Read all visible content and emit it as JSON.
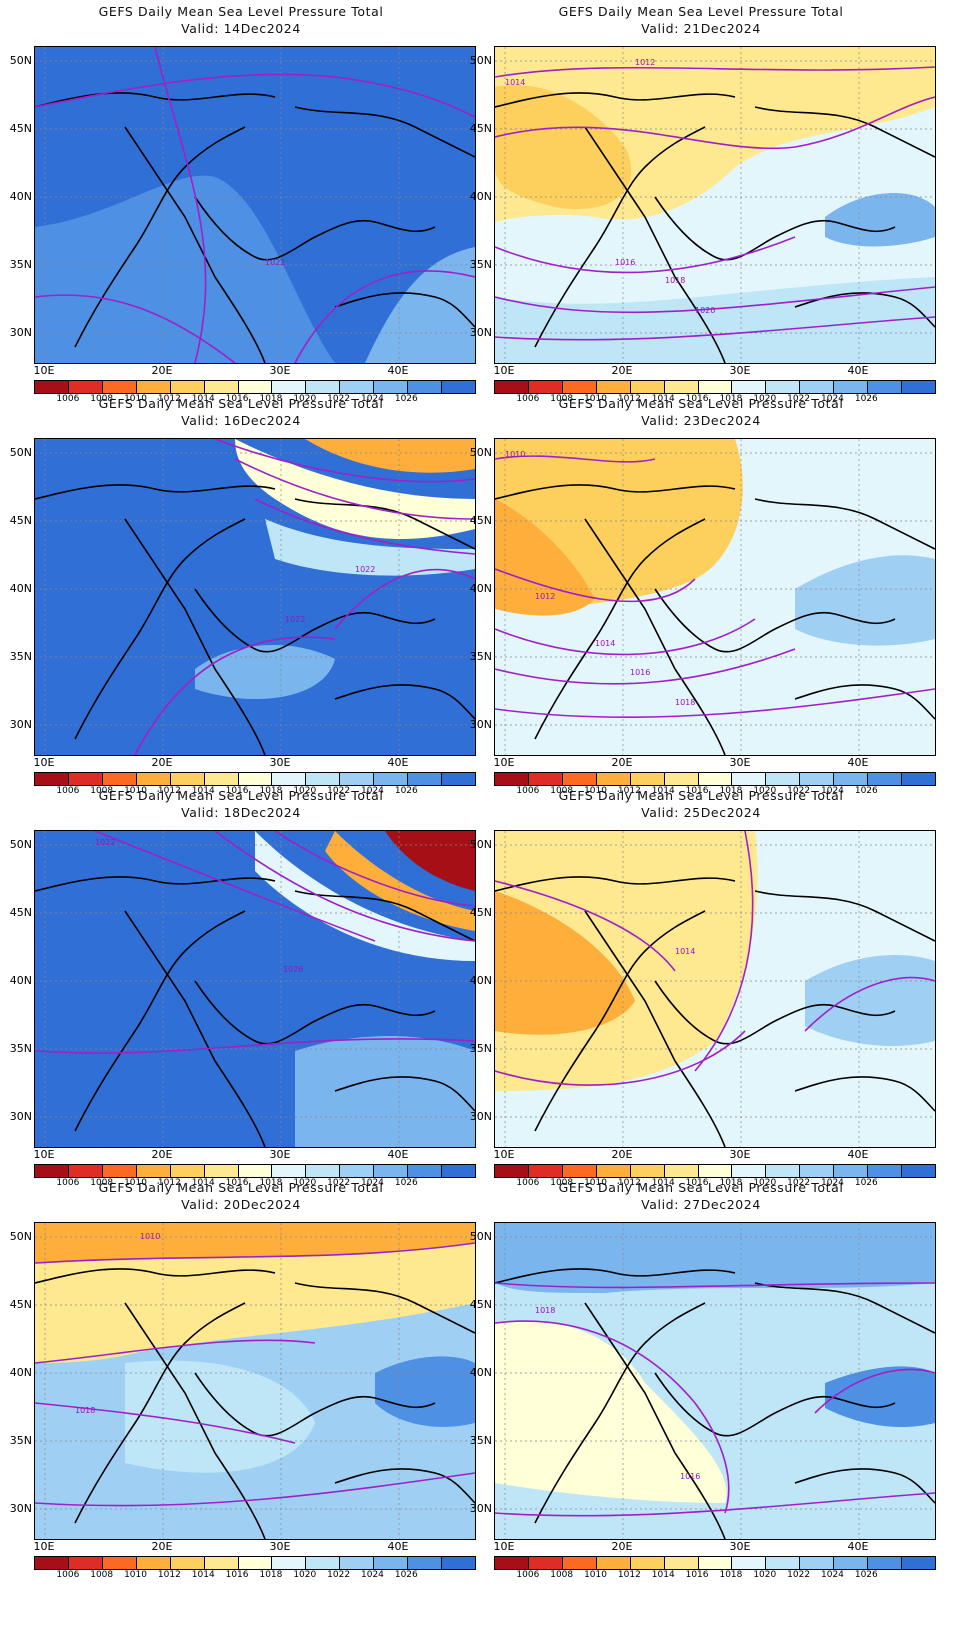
{
  "title_line": "GEFS Daily Mean Sea Level Pressure Total",
  "valid_prefix": "Valid:",
  "lat_labels": [
    "50N",
    "45N",
    "40N",
    "35N",
    "30N"
  ],
  "lon_labels": [
    "10E",
    "20E",
    "30E",
    "40E"
  ],
  "colorbar": {
    "labels": [
      "1006",
      "1008",
      "1010",
      "1012",
      "1014",
      "1016",
      "1018",
      "1020",
      "1022",
      "1024",
      "1026"
    ],
    "colors": [
      "#a50f15",
      "#de2d26",
      "#fc6a21",
      "#fdae3b",
      "#fdcf5c",
      "#fee890",
      "#ffffd8",
      "#e3f6fb",
      "#bfe6f7",
      "#9fd0f4",
      "#7ab5ee",
      "#4d90e4",
      "#2f6fd6"
    ]
  },
  "panels": [
    {
      "date": "14Dec2024",
      "column": "left",
      "contour_labels": [
        "1022"
      ]
    },
    {
      "date": "21Dec2024",
      "column": "right",
      "contour_labels": [
        "1012",
        "1014",
        "1016",
        "1018",
        "1020"
      ]
    },
    {
      "date": "16Dec2024",
      "column": "left",
      "contour_labels": [
        "1022",
        "1022"
      ]
    },
    {
      "date": "23Dec2024",
      "column": "right",
      "contour_labels": [
        "1010",
        "1012",
        "1014",
        "1016",
        "1018"
      ]
    },
    {
      "date": "18Dec2024",
      "column": "left",
      "contour_labels": [
        "1022",
        "1026"
      ]
    },
    {
      "date": "25Dec2024",
      "column": "right",
      "contour_labels": [
        "1014"
      ]
    },
    {
      "date": "20Dec2024",
      "column": "left",
      "contour_labels": [
        "1010",
        "1018"
      ]
    },
    {
      "date": "27Dec2024",
      "column": "right",
      "contour_labels": [
        "1018",
        "1016"
      ]
    }
  ]
}
